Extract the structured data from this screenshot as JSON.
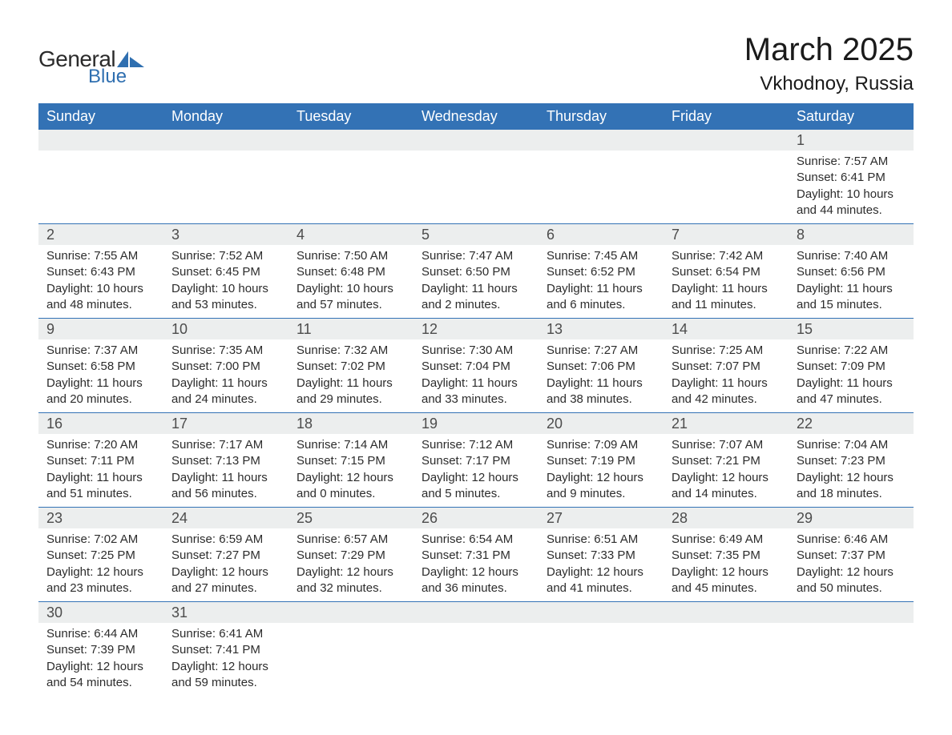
{
  "logo": {
    "text1": "General",
    "text2": "Blue",
    "mark_color": "#2f6fb0",
    "text1_color": "#2b2b2b"
  },
  "title": "March 2025",
  "location": "Vkhodnoy, Russia",
  "colors": {
    "header_bg": "#3372b5",
    "header_text": "#ffffff",
    "row_divider": "#3372b5",
    "daynum_bg": "#eceeee",
    "daynum_text": "#4c4c4c",
    "body_text": "#2c2c2c",
    "page_bg": "#ffffff"
  },
  "typography": {
    "title_fontsize": 40,
    "location_fontsize": 24,
    "header_fontsize": 18,
    "daynum_fontsize": 18,
    "body_fontsize": 15,
    "font_family": "Arial"
  },
  "layout": {
    "columns": 7,
    "rows": 6,
    "first_day_column_index": 6
  },
  "weekdays": [
    "Sunday",
    "Monday",
    "Tuesday",
    "Wednesday",
    "Thursday",
    "Friday",
    "Saturday"
  ],
  "weeks": [
    [
      {
        "day": "",
        "sunrise": "",
        "sunset": "",
        "daylight": ""
      },
      {
        "day": "",
        "sunrise": "",
        "sunset": "",
        "daylight": ""
      },
      {
        "day": "",
        "sunrise": "",
        "sunset": "",
        "daylight": ""
      },
      {
        "day": "",
        "sunrise": "",
        "sunset": "",
        "daylight": ""
      },
      {
        "day": "",
        "sunrise": "",
        "sunset": "",
        "daylight": ""
      },
      {
        "day": "",
        "sunrise": "",
        "sunset": "",
        "daylight": ""
      },
      {
        "day": "1",
        "sunrise": "Sunrise: 7:57 AM",
        "sunset": "Sunset: 6:41 PM",
        "daylight": "Daylight: 10 hours and 44 minutes."
      }
    ],
    [
      {
        "day": "2",
        "sunrise": "Sunrise: 7:55 AM",
        "sunset": "Sunset: 6:43 PM",
        "daylight": "Daylight: 10 hours and 48 minutes."
      },
      {
        "day": "3",
        "sunrise": "Sunrise: 7:52 AM",
        "sunset": "Sunset: 6:45 PM",
        "daylight": "Daylight: 10 hours and 53 minutes."
      },
      {
        "day": "4",
        "sunrise": "Sunrise: 7:50 AM",
        "sunset": "Sunset: 6:48 PM",
        "daylight": "Daylight: 10 hours and 57 minutes."
      },
      {
        "day": "5",
        "sunrise": "Sunrise: 7:47 AM",
        "sunset": "Sunset: 6:50 PM",
        "daylight": "Daylight: 11 hours and 2 minutes."
      },
      {
        "day": "6",
        "sunrise": "Sunrise: 7:45 AM",
        "sunset": "Sunset: 6:52 PM",
        "daylight": "Daylight: 11 hours and 6 minutes."
      },
      {
        "day": "7",
        "sunrise": "Sunrise: 7:42 AM",
        "sunset": "Sunset: 6:54 PM",
        "daylight": "Daylight: 11 hours and 11 minutes."
      },
      {
        "day": "8",
        "sunrise": "Sunrise: 7:40 AM",
        "sunset": "Sunset: 6:56 PM",
        "daylight": "Daylight: 11 hours and 15 minutes."
      }
    ],
    [
      {
        "day": "9",
        "sunrise": "Sunrise: 7:37 AM",
        "sunset": "Sunset: 6:58 PM",
        "daylight": "Daylight: 11 hours and 20 minutes."
      },
      {
        "day": "10",
        "sunrise": "Sunrise: 7:35 AM",
        "sunset": "Sunset: 7:00 PM",
        "daylight": "Daylight: 11 hours and 24 minutes."
      },
      {
        "day": "11",
        "sunrise": "Sunrise: 7:32 AM",
        "sunset": "Sunset: 7:02 PM",
        "daylight": "Daylight: 11 hours and 29 minutes."
      },
      {
        "day": "12",
        "sunrise": "Sunrise: 7:30 AM",
        "sunset": "Sunset: 7:04 PM",
        "daylight": "Daylight: 11 hours and 33 minutes."
      },
      {
        "day": "13",
        "sunrise": "Sunrise: 7:27 AM",
        "sunset": "Sunset: 7:06 PM",
        "daylight": "Daylight: 11 hours and 38 minutes."
      },
      {
        "day": "14",
        "sunrise": "Sunrise: 7:25 AM",
        "sunset": "Sunset: 7:07 PM",
        "daylight": "Daylight: 11 hours and 42 minutes."
      },
      {
        "day": "15",
        "sunrise": "Sunrise: 7:22 AM",
        "sunset": "Sunset: 7:09 PM",
        "daylight": "Daylight: 11 hours and 47 minutes."
      }
    ],
    [
      {
        "day": "16",
        "sunrise": "Sunrise: 7:20 AM",
        "sunset": "Sunset: 7:11 PM",
        "daylight": "Daylight: 11 hours and 51 minutes."
      },
      {
        "day": "17",
        "sunrise": "Sunrise: 7:17 AM",
        "sunset": "Sunset: 7:13 PM",
        "daylight": "Daylight: 11 hours and 56 minutes."
      },
      {
        "day": "18",
        "sunrise": "Sunrise: 7:14 AM",
        "sunset": "Sunset: 7:15 PM",
        "daylight": "Daylight: 12 hours and 0 minutes."
      },
      {
        "day": "19",
        "sunrise": "Sunrise: 7:12 AM",
        "sunset": "Sunset: 7:17 PM",
        "daylight": "Daylight: 12 hours and 5 minutes."
      },
      {
        "day": "20",
        "sunrise": "Sunrise: 7:09 AM",
        "sunset": "Sunset: 7:19 PM",
        "daylight": "Daylight: 12 hours and 9 minutes."
      },
      {
        "day": "21",
        "sunrise": "Sunrise: 7:07 AM",
        "sunset": "Sunset: 7:21 PM",
        "daylight": "Daylight: 12 hours and 14 minutes."
      },
      {
        "day": "22",
        "sunrise": "Sunrise: 7:04 AM",
        "sunset": "Sunset: 7:23 PM",
        "daylight": "Daylight: 12 hours and 18 minutes."
      }
    ],
    [
      {
        "day": "23",
        "sunrise": "Sunrise: 7:02 AM",
        "sunset": "Sunset: 7:25 PM",
        "daylight": "Daylight: 12 hours and 23 minutes."
      },
      {
        "day": "24",
        "sunrise": "Sunrise: 6:59 AM",
        "sunset": "Sunset: 7:27 PM",
        "daylight": "Daylight: 12 hours and 27 minutes."
      },
      {
        "day": "25",
        "sunrise": "Sunrise: 6:57 AM",
        "sunset": "Sunset: 7:29 PM",
        "daylight": "Daylight: 12 hours and 32 minutes."
      },
      {
        "day": "26",
        "sunrise": "Sunrise: 6:54 AM",
        "sunset": "Sunset: 7:31 PM",
        "daylight": "Daylight: 12 hours and 36 minutes."
      },
      {
        "day": "27",
        "sunrise": "Sunrise: 6:51 AM",
        "sunset": "Sunset: 7:33 PM",
        "daylight": "Daylight: 12 hours and 41 minutes."
      },
      {
        "day": "28",
        "sunrise": "Sunrise: 6:49 AM",
        "sunset": "Sunset: 7:35 PM",
        "daylight": "Daylight: 12 hours and 45 minutes."
      },
      {
        "day": "29",
        "sunrise": "Sunrise: 6:46 AM",
        "sunset": "Sunset: 7:37 PM",
        "daylight": "Daylight: 12 hours and 50 minutes."
      }
    ],
    [
      {
        "day": "30",
        "sunrise": "Sunrise: 6:44 AM",
        "sunset": "Sunset: 7:39 PM",
        "daylight": "Daylight: 12 hours and 54 minutes."
      },
      {
        "day": "31",
        "sunrise": "Sunrise: 6:41 AM",
        "sunset": "Sunset: 7:41 PM",
        "daylight": "Daylight: 12 hours and 59 minutes."
      },
      {
        "day": "",
        "sunrise": "",
        "sunset": "",
        "daylight": ""
      },
      {
        "day": "",
        "sunrise": "",
        "sunset": "",
        "daylight": ""
      },
      {
        "day": "",
        "sunrise": "",
        "sunset": "",
        "daylight": ""
      },
      {
        "day": "",
        "sunrise": "",
        "sunset": "",
        "daylight": ""
      },
      {
        "day": "",
        "sunrise": "",
        "sunset": "",
        "daylight": ""
      }
    ]
  ]
}
